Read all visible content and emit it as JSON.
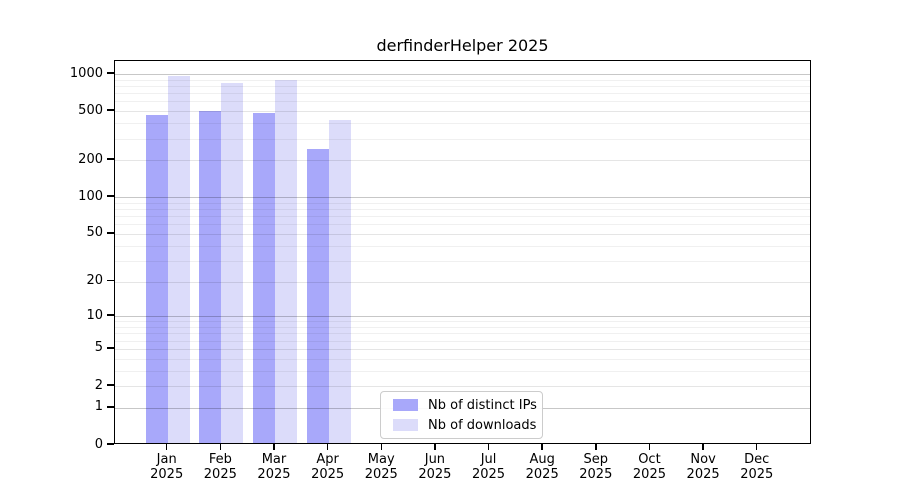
{
  "title": "derfinderHelper 2025",
  "legend": {
    "items": [
      {
        "label": "Nb of distinct IPs",
        "color": "#a8a8fa"
      },
      {
        "label": "Nb of downloads",
        "color": "#dcdcfa"
      }
    ]
  },
  "chart_data": {
    "type": "bar",
    "title": "derfinderHelper 2025",
    "categories": [
      "Jan",
      "Feb",
      "Mar",
      "Apr",
      "May",
      "Jun",
      "Jul",
      "Aug",
      "Sep",
      "Oct",
      "Nov",
      "Dec"
    ],
    "year": "2025",
    "series": [
      {
        "name": "Nb of distinct IPs",
        "color": "#a8a8fa",
        "values": [
          450,
          480,
          465,
          237,
          null,
          null,
          null,
          null,
          null,
          null,
          null,
          null
        ]
      },
      {
        "name": "Nb of downloads",
        "color": "#dcdcfa",
        "values": [
          925,
          810,
          855,
          410,
          null,
          null,
          null,
          null,
          null,
          null,
          null,
          null
        ]
      }
    ],
    "yticks": [
      0,
      1,
      2,
      5,
      10,
      20,
      50,
      100,
      200,
      500,
      1000
    ],
    "ylim": [
      0,
      1000
    ],
    "yscale": "log1p",
    "grid": "horizontal major+minor",
    "legend_position": "inside-bottom-center"
  }
}
